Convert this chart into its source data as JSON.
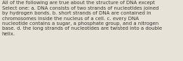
{
  "text": "All of the following are true about the structure of DNA except\nSelect one: a. DNA consists of two strands of nucleotides joined\nby hydrogen bonds. b. short strands of DNA are contained in\nchromosomes inside the nucleus of a cell. c. every DNA\nnucleotide contains a sugar, a phosphate group, and a nitrogen\nbase. d. the long strands of nucleotides are twisted into a double\nhelix.",
  "background_color": "#e8e3d8",
  "text_color": "#3a3530",
  "font_size": 5.05,
  "figsize": [
    2.61,
    0.88
  ],
  "dpi": 100,
  "linespacing": 1.28
}
